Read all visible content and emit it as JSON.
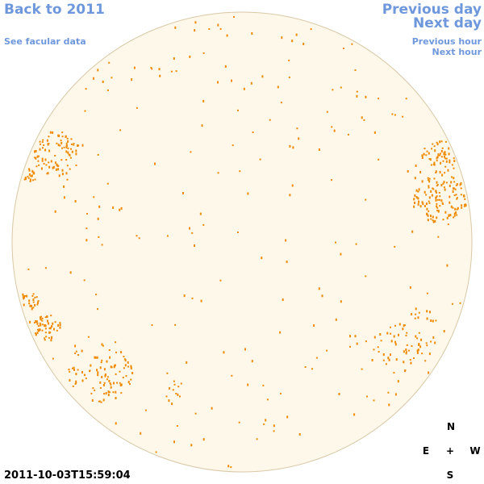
{
  "links": {
    "back_year": "Back to 2011",
    "facular": "See facular data",
    "previous_day": "Previous day",
    "next_day": "Next day",
    "previous_hour": "Previous hour",
    "next_hour": "Next hour"
  },
  "timestamp": "2011-10-03T15:59:04",
  "compass": {
    "north": "N",
    "east": "E",
    "center": "+",
    "west": "W",
    "south": "S"
  }
}
